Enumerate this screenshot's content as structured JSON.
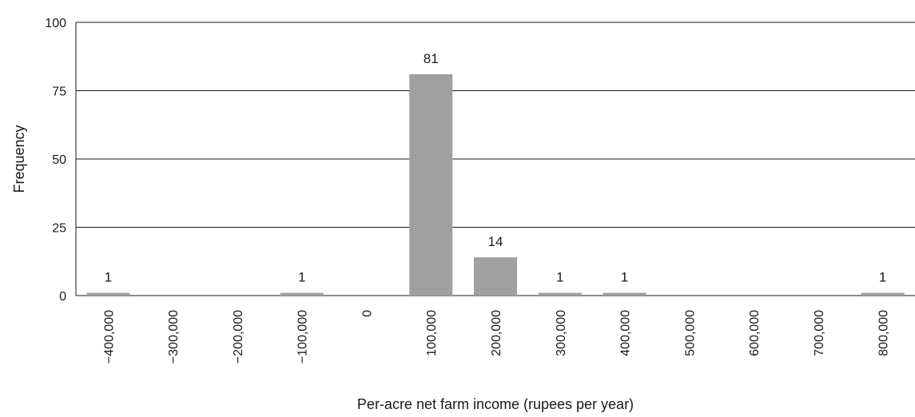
{
  "chart_data": {
    "type": "bar",
    "title": "",
    "xlabel": "Per-acre net farm income (rupees per year)",
    "ylabel": "Frequency",
    "ylim": [
      0,
      100
    ],
    "yticks": [
      0,
      25,
      50,
      75,
      100
    ],
    "grid": "horizontal",
    "categories": [
      "−400,000",
      "−300,000",
      "−200,000",
      "−100,000",
      "0",
      "100,000",
      "200,000",
      "300,000",
      "400,000",
      "500,000",
      "600,000",
      "700,000",
      "800,000"
    ],
    "values": [
      1,
      0,
      0,
      1,
      0,
      81,
      14,
      1,
      1,
      0,
      0,
      0,
      1
    ],
    "data_labels": [
      "1",
      "",
      "",
      "1",
      "",
      "81",
      "14",
      "1",
      "1",
      "",
      "",
      "",
      "1"
    ],
    "bar_color": "#a0a0a0",
    "grid_color": "#1a1a1a"
  }
}
